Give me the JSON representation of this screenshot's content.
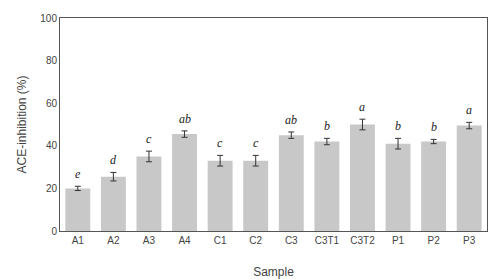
{
  "chart_data": {
    "type": "bar",
    "categories": [
      "A1",
      "A2",
      "A3",
      "A4",
      "C1",
      "C2",
      "C3",
      "C3T1",
      "C3T2",
      "P1",
      "P2",
      "P3"
    ],
    "values": [
      20.0,
      25.5,
      35.0,
      45.5,
      33.0,
      33.0,
      45.0,
      42.0,
      50.0,
      41.0,
      42.0,
      49.5
    ],
    "errors": [
      1.0,
      2.0,
      2.5,
      1.5,
      2.5,
      2.5,
      1.5,
      1.5,
      2.5,
      2.5,
      1.0,
      1.5
    ],
    "letters": [
      "e",
      "d",
      "c",
      "ab",
      "c",
      "c",
      "ab",
      "b",
      "a",
      "b",
      "b",
      "a"
    ],
    "color": "#c8c8c8",
    "xlabel": "Sample",
    "ylabel": "ACE-inhibition (%)",
    "ylim": [
      0,
      100
    ],
    "yticks": [
      0,
      20,
      40,
      60,
      80,
      100
    ],
    "grid": false
  }
}
